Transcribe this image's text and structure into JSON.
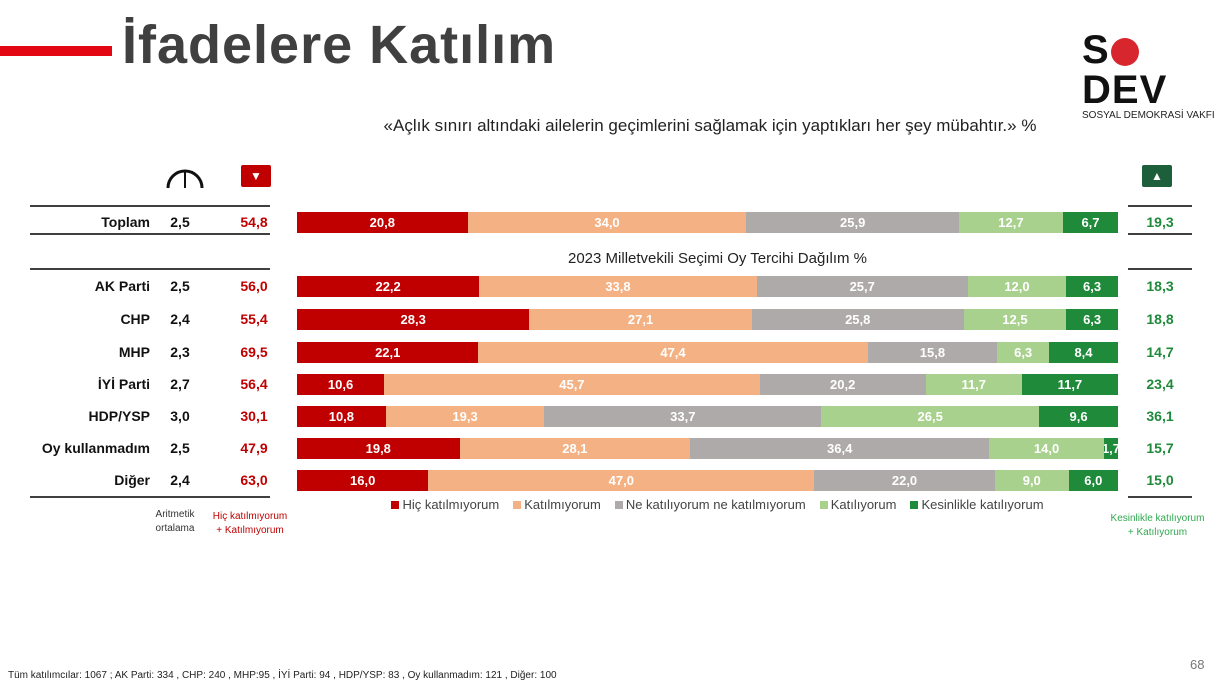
{
  "header": {
    "title": "İfadelere Katılım",
    "logo_main": "SODEV",
    "logo_sub": "SOSYAL DEMOKRASİ VAKFI"
  },
  "question": "«Açlık sınırı altındaki ailelerin geçimlerini sağlamak için yaptıkları her şey mübahtır.» %",
  "subtitle": "2023 Milletvekili Seçimi Oy Tercihi Dağılım %",
  "notes": {
    "mean_line1": "Aritmetik",
    "mean_line2": "ortalama",
    "neg_line1": "Hiç katılmıyorum",
    "neg_line2": "+ Katılmıyorum",
    "pos_line1": "Kesinlikle katılıyorum",
    "pos_line2": "+ Katılıyorum"
  },
  "footer": "Tüm katılımcılar: 1067 ;  AK Parti: 334 , CHP: 240 , MHP:95 , İYİ Parti: 94 , HDP/YSP: 83 , Oy kullanmadım: 121 , Diğer: 100",
  "page_number": "68",
  "icons": {
    "mean": "gauge-icon",
    "neg": "thumbs-down-icon",
    "pos": "thumbs-up-icon"
  },
  "chart_data": {
    "type": "bar",
    "stacked": true,
    "orientation": "horizontal",
    "title": "«Açlık sınırı altındaki ailelerin geçimlerini sağlamak için yaptıkları her şey mübahtır.» %",
    "legend": [
      "Hiç katılmıyorum",
      "Katılmıyorum",
      "Ne katılıyorum ne katılmıyorum",
      "Katılıyorum",
      "Kesinlikle katılıyorum"
    ],
    "legend_position": "bottom",
    "colors": [
      "#c00000",
      "#f4b183",
      "#aeaaaa",
      "#a9d18e",
      "#1e8a3a"
    ],
    "rows": [
      {
        "label": "Toplam",
        "mean": "2,5",
        "neg": "54,8",
        "pos": "19,3",
        "values": [
          20.8,
          34.0,
          25.9,
          12.7,
          6.7
        ],
        "labels": [
          "20,8",
          "34,0",
          "25,9",
          "12,7",
          "6,7"
        ]
      },
      {
        "label": "AK Parti",
        "mean": "2,5",
        "neg": "56,0",
        "pos": "18,3",
        "values": [
          22.2,
          33.8,
          25.7,
          12.0,
          6.3
        ],
        "labels": [
          "22,2",
          "33,8",
          "25,7",
          "12,0",
          "6,3"
        ]
      },
      {
        "label": "CHP",
        "mean": "2,4",
        "neg": "55,4",
        "pos": "18,8",
        "values": [
          28.3,
          27.1,
          25.8,
          12.5,
          6.3
        ],
        "labels": [
          "28,3",
          "27,1",
          "25,8",
          "12,5",
          "6,3"
        ]
      },
      {
        "label": "MHP",
        "mean": "2,3",
        "neg": "69,5",
        "pos": "14,7",
        "values": [
          22.1,
          47.4,
          15.8,
          6.3,
          8.4
        ],
        "labels": [
          "22,1",
          "47,4",
          "15,8",
          "6,3",
          "8,4"
        ]
      },
      {
        "label": "İYİ Parti",
        "mean": "2,7",
        "neg": "56,4",
        "pos": "23,4",
        "values": [
          10.6,
          45.7,
          20.2,
          11.7,
          11.7
        ],
        "labels": [
          "10,6",
          "45,7",
          "20,2",
          "11,7",
          "11,7"
        ]
      },
      {
        "label": "HDP/YSP",
        "mean": "3,0",
        "neg": "30,1",
        "pos": "36,1",
        "values": [
          10.8,
          19.3,
          33.7,
          26.5,
          9.6
        ],
        "labels": [
          "10,8",
          "19,3",
          "33,7",
          "26,5",
          "9,6"
        ]
      },
      {
        "label": "Oy kullanmadım",
        "mean": "2,5",
        "neg": "47,9",
        "pos": "15,7",
        "values": [
          19.8,
          28.1,
          36.4,
          14.0,
          1.7
        ],
        "labels": [
          "19,8",
          "28,1",
          "36,4",
          "14,0",
          "1,7"
        ]
      },
      {
        "label": "Diğer",
        "mean": "2,4",
        "neg": "63,0",
        "pos": "15,0",
        "values": [
          16.0,
          47.0,
          22.0,
          9.0,
          6.0
        ],
        "labels": [
          "16,0",
          "47,0",
          "22,0",
          "9,0",
          "6,0"
        ]
      }
    ]
  }
}
